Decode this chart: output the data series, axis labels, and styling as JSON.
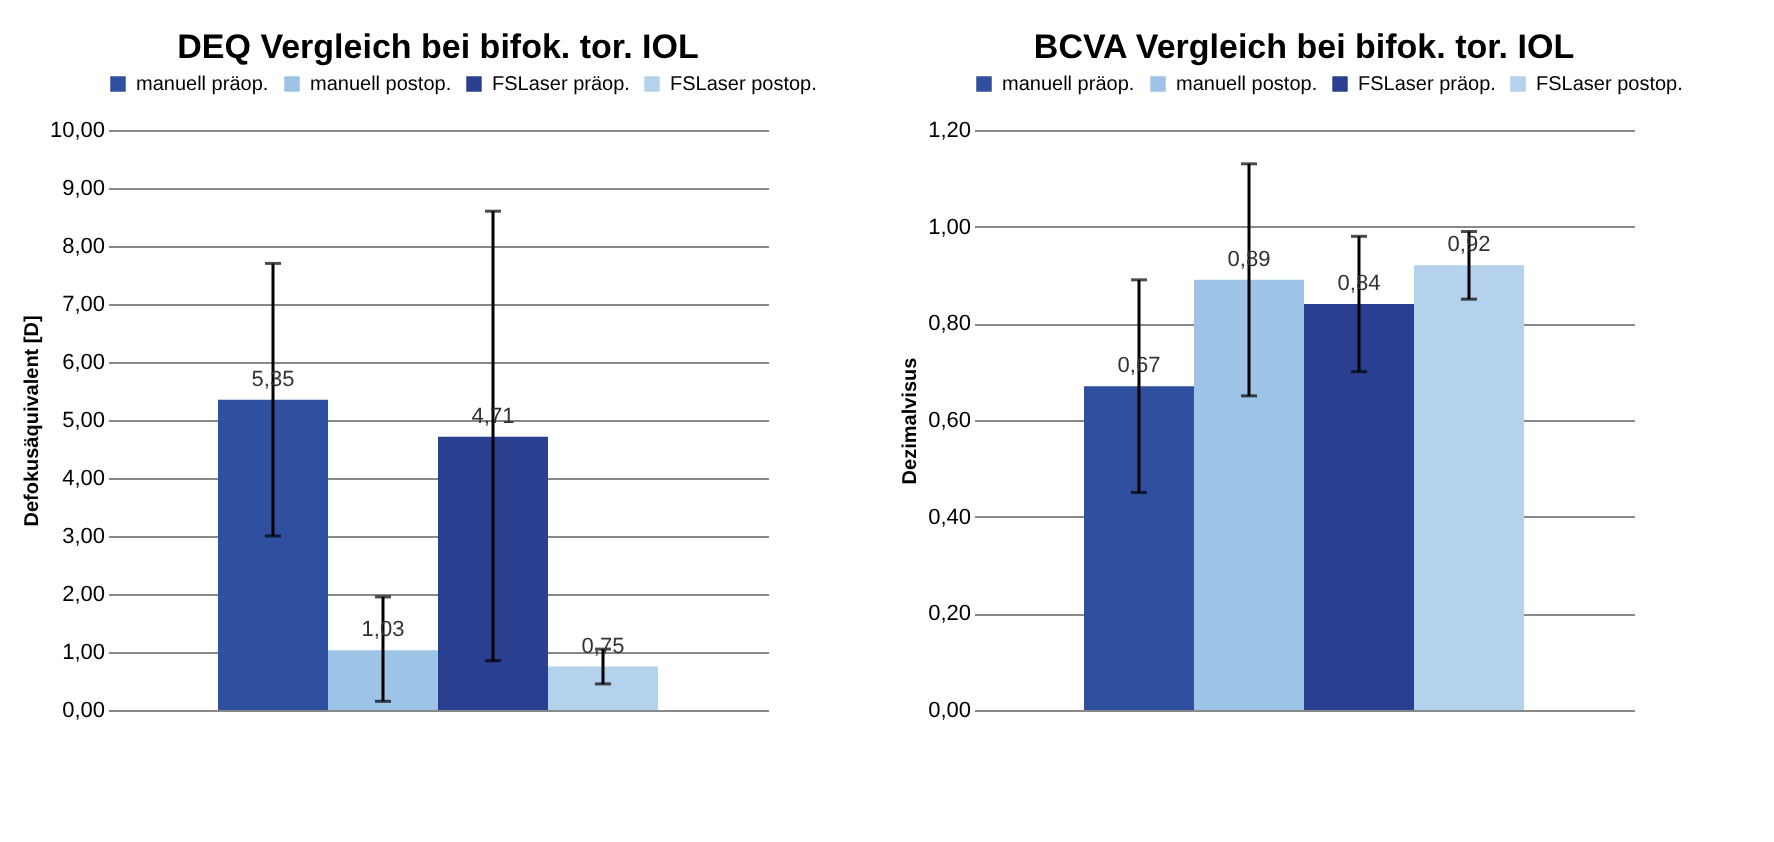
{
  "chart_data": [
    {
      "type": "bar",
      "title": "DEQ Vergleich bei bifok. tor. IOL",
      "ylabel": "Defokusäquivalent [D]",
      "categories": [
        null
      ],
      "data_labels": true,
      "legend": "top",
      "grid": "y",
      "ylim": [
        0,
        10
      ],
      "yticks": [
        {
          "value": 0,
          "label": "0,00"
        },
        {
          "value": 1,
          "label": "1,00"
        },
        {
          "value": 2,
          "label": "2,00"
        },
        {
          "value": 3,
          "label": "3,00"
        },
        {
          "value": 4,
          "label": "4,00"
        },
        {
          "value": 5,
          "label": "5,00"
        },
        {
          "value": 6,
          "label": "6,00"
        },
        {
          "value": 7,
          "label": "7,00"
        },
        {
          "value": 8,
          "label": "8,00"
        },
        {
          "value": 9,
          "label": "9,00"
        },
        {
          "value": 10,
          "label": "10,00"
        }
      ],
      "series": [
        {
          "name": "manuell präop.",
          "color": "#2f4f9f",
          "values": [
            5.35
          ],
          "value_labels": [
            "5,35"
          ],
          "errors": [
            [
              3.0,
              7.7
            ]
          ]
        },
        {
          "name": "manuell postop.",
          "color": "#9dc3e6",
          "values": [
            1.03
          ],
          "value_labels": [
            "1,03"
          ],
          "errors": [
            [
              0.15,
              1.95
            ]
          ]
        },
        {
          "name": "FSLaser präop.",
          "color": "#2a3f8f",
          "values": [
            4.71
          ],
          "value_labels": [
            "4,71"
          ],
          "errors": [
            [
              0.85,
              8.6
            ]
          ]
        },
        {
          "name": "FSLaser postop.",
          "color": "#b4d2ec",
          "values": [
            0.75
          ],
          "value_labels": [
            "0,75"
          ],
          "errors": [
            [
              0.45,
              1.05
            ]
          ]
        }
      ]
    },
    {
      "type": "bar",
      "title": "BCVA Vergleich bei bifok. tor. IOL",
      "ylabel": "Dezimalvisus",
      "categories": [
        null
      ],
      "data_labels": true,
      "legend": "top",
      "grid": "y",
      "ylim": [
        0,
        1.2
      ],
      "yticks": [
        {
          "value": 0,
          "label": "0,00"
        },
        {
          "value": 0.2,
          "label": "0,20"
        },
        {
          "value": 0.4,
          "label": "0,40"
        },
        {
          "value": 0.6,
          "label": "0,60"
        },
        {
          "value": 0.8,
          "label": "0,80"
        },
        {
          "value": 1.0,
          "label": "1,00"
        },
        {
          "value": 1.2,
          "label": "1,20"
        }
      ],
      "series": [
        {
          "name": "manuell präop.",
          "color": "#2f4f9f",
          "values": [
            0.67
          ],
          "value_labels": [
            "0,67"
          ],
          "errors": [
            [
              0.45,
              0.89
            ]
          ]
        },
        {
          "name": "manuell postop.",
          "color": "#9dc3e6",
          "values": [
            0.89
          ],
          "value_labels": [
            "0,89"
          ],
          "errors": [
            [
              0.65,
              1.13
            ]
          ]
        },
        {
          "name": "FSLaser präop.",
          "color": "#2a3f8f",
          "values": [
            0.84
          ],
          "value_labels": [
            "0,84"
          ],
          "errors": [
            [
              0.7,
              0.98
            ]
          ]
        },
        {
          "name": "FSLaser postop.",
          "color": "#b4d2ec",
          "values": [
            0.92
          ],
          "value_labels": [
            "0,92"
          ],
          "errors": [
            [
              0.85,
              0.99
            ]
          ]
        }
      ]
    }
  ]
}
